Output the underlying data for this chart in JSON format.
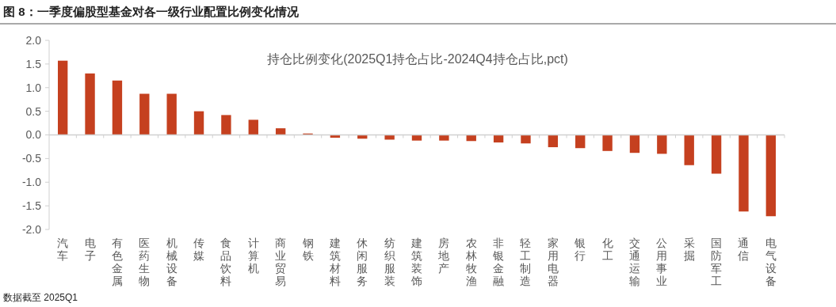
{
  "chart_data": {
    "type": "bar",
    "title": "图 8：一季度偏股型基金对各一级行业配置比例变化情况",
    "categories": [
      "汽车",
      "电子",
      "有色金属",
      "医药生物",
      "机械设备",
      "传媒",
      "食品饮料",
      "计算机",
      "商业贸易",
      "钢铁",
      "建筑材料",
      "休闲服务",
      "纺织服装",
      "建筑装饰",
      "房地产",
      "农林牧渔",
      "非银金融",
      "轻工制造",
      "家用电器",
      "银行",
      "化工",
      "交通运输",
      "公用事业",
      "采掘",
      "国防军工",
      "通信",
      "电气设备"
    ],
    "values": [
      1.57,
      1.3,
      1.15,
      0.87,
      0.87,
      0.5,
      0.42,
      0.32,
      0.14,
      0.03,
      -0.06,
      -0.08,
      -0.1,
      -0.12,
      -0.12,
      -0.13,
      -0.16,
      -0.18,
      -0.26,
      -0.28,
      -0.34,
      -0.38,
      -0.4,
      -0.64,
      -0.82,
      -1.62,
      -1.72
    ],
    "color": "#c5401f",
    "ylim": [
      -2.0,
      2.0
    ],
    "yticks": [
      {
        "value": 2.0,
        "label": "2.0"
      },
      {
        "value": 1.5,
        "label": "1.5"
      },
      {
        "value": 1.0,
        "label": "1.0"
      },
      {
        "value": 0.5,
        "label": "0.5"
      },
      {
        "value": 0,
        "label": "0.0"
      },
      {
        "value": -0.5,
        "label": "-0.5"
      },
      {
        "value": -1.0,
        "label": "-1.0"
      },
      {
        "value": -1.5,
        "label": "-1.5"
      },
      {
        "value": -2.0,
        "label": "-2.0"
      }
    ],
    "annotations": [
      "持仓比例变化(2025Q1持仓占比-2024Q4持仓占比,pct)",
      "数据截至 2025Q1"
    ]
  }
}
